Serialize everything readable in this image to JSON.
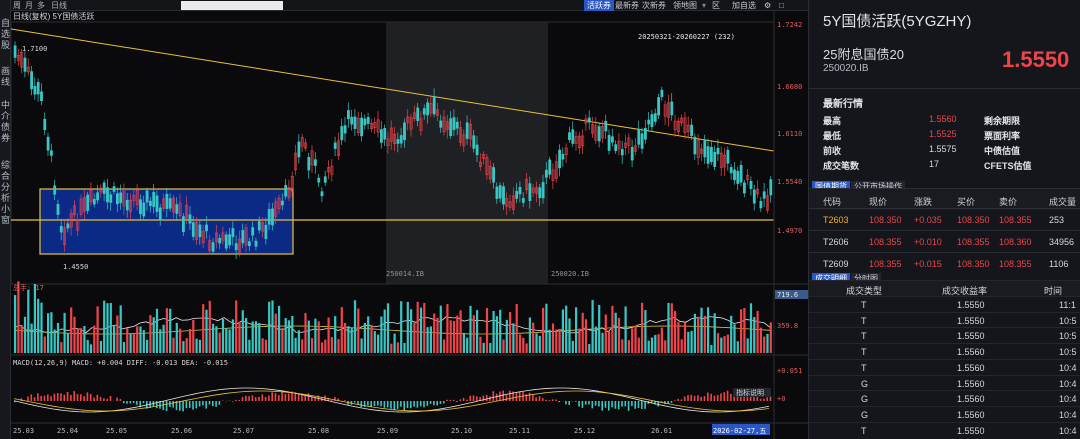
{
  "left_strip": {
    "items": [
      "自选股",
      "画线",
      "中介债券",
      "综合分析小窗"
    ]
  },
  "toolbar": {
    "left_items": [
      "周",
      "月",
      "多",
      "日线"
    ],
    "buttons": [
      "活跃券",
      "最新券",
      "次新券",
      "领地图",
      "区",
      "加自选"
    ],
    "active_button": "活跃券"
  },
  "chart_header": {
    "line1": "日线(复权)  5Y国债活跃",
    "range_label": "20250321-20260227 (232)"
  },
  "price_axis": {
    "labels": [
      "1.7242",
      "1.6680",
      "1.6110",
      "1.5540",
      "1.4970"
    ]
  },
  "annotations": {
    "high": "1.7100",
    "low": "1.4550",
    "contract1": "250014.IB",
    "contract2": "250020.IB"
  },
  "volume": {
    "label": "总手: 17",
    "axis_labels": [
      "719.6",
      "359.8"
    ]
  },
  "macd": {
    "label": "MACD(12,26,9) MACD: +0.004 DIFF: -0.013 DEA: -0.015",
    "help": "指标说明",
    "axis_labels": [
      "+0.051",
      "+0"
    ]
  },
  "date_axis": {
    "labels": [
      "25.03",
      "25.04",
      "25.05",
      "25.06",
      "25.07",
      "25.08",
      "25.09",
      "25.10",
      "25.11",
      "25.12",
      "26.01",
      "2026-02-27,五"
    ]
  },
  "panel": {
    "title": "5Y国债活跃(5YGZHY)",
    "bond_name": "25附息国债20",
    "bond_code": "250020.IB",
    "price": "1.5550",
    "latest_title": "最新行情",
    "stats": [
      {
        "label": "最高",
        "value": "1.5560",
        "label2": "剩余期限",
        "value2": ""
      },
      {
        "label": "最低",
        "value": "1.5525",
        "label2": "票面利率",
        "value2": ""
      },
      {
        "label": "前收",
        "value": "1.5575",
        "label2": "中债估值",
        "value2": ""
      },
      {
        "label": "成交笔数",
        "value": "17",
        "label2": "CFETS估值",
        "value2": ""
      }
    ],
    "futures_tabs": [
      "国债期货",
      "公开市场操作"
    ],
    "futures_headers": [
      "代码",
      "现价",
      "涨跌",
      "买价",
      "卖价",
      "成交量"
    ],
    "futures_rows": [
      [
        "T2603",
        "108.350",
        "+0.035",
        "108.350",
        "108.355",
        "253"
      ],
      [
        "T2606",
        "108.355",
        "+0.010",
        "108.355",
        "108.360",
        "34956"
      ],
      [
        "T2609",
        "108.355",
        "+0.015",
        "108.350",
        "108.355",
        "1106"
      ]
    ],
    "trade_tabs": [
      "成交明细",
      "分时图"
    ],
    "trade_headers": [
      "成交类型",
      "成交收益率",
      "时间"
    ],
    "trade_rows": [
      [
        "T",
        "1.5550",
        "11:1"
      ],
      [
        "T",
        "1.5550",
        "10:5"
      ],
      [
        "T",
        "1.5550",
        "10:5"
      ],
      [
        "T",
        "1.5560",
        "10:5"
      ],
      [
        "T",
        "1.5560",
        "10:4"
      ],
      [
        "G",
        "1.5560",
        "10:4"
      ],
      [
        "G",
        "1.5560",
        "10:4"
      ],
      [
        "G",
        "1.5560",
        "10:4"
      ],
      [
        "T",
        "1.5550",
        "10:4"
      ]
    ]
  },
  "colors": {
    "up": "#f0444b",
    "down": "#39c7c4",
    "accent": "#2b57c6",
    "trend": "#e8c23a",
    "box": "#0a2a86"
  }
}
